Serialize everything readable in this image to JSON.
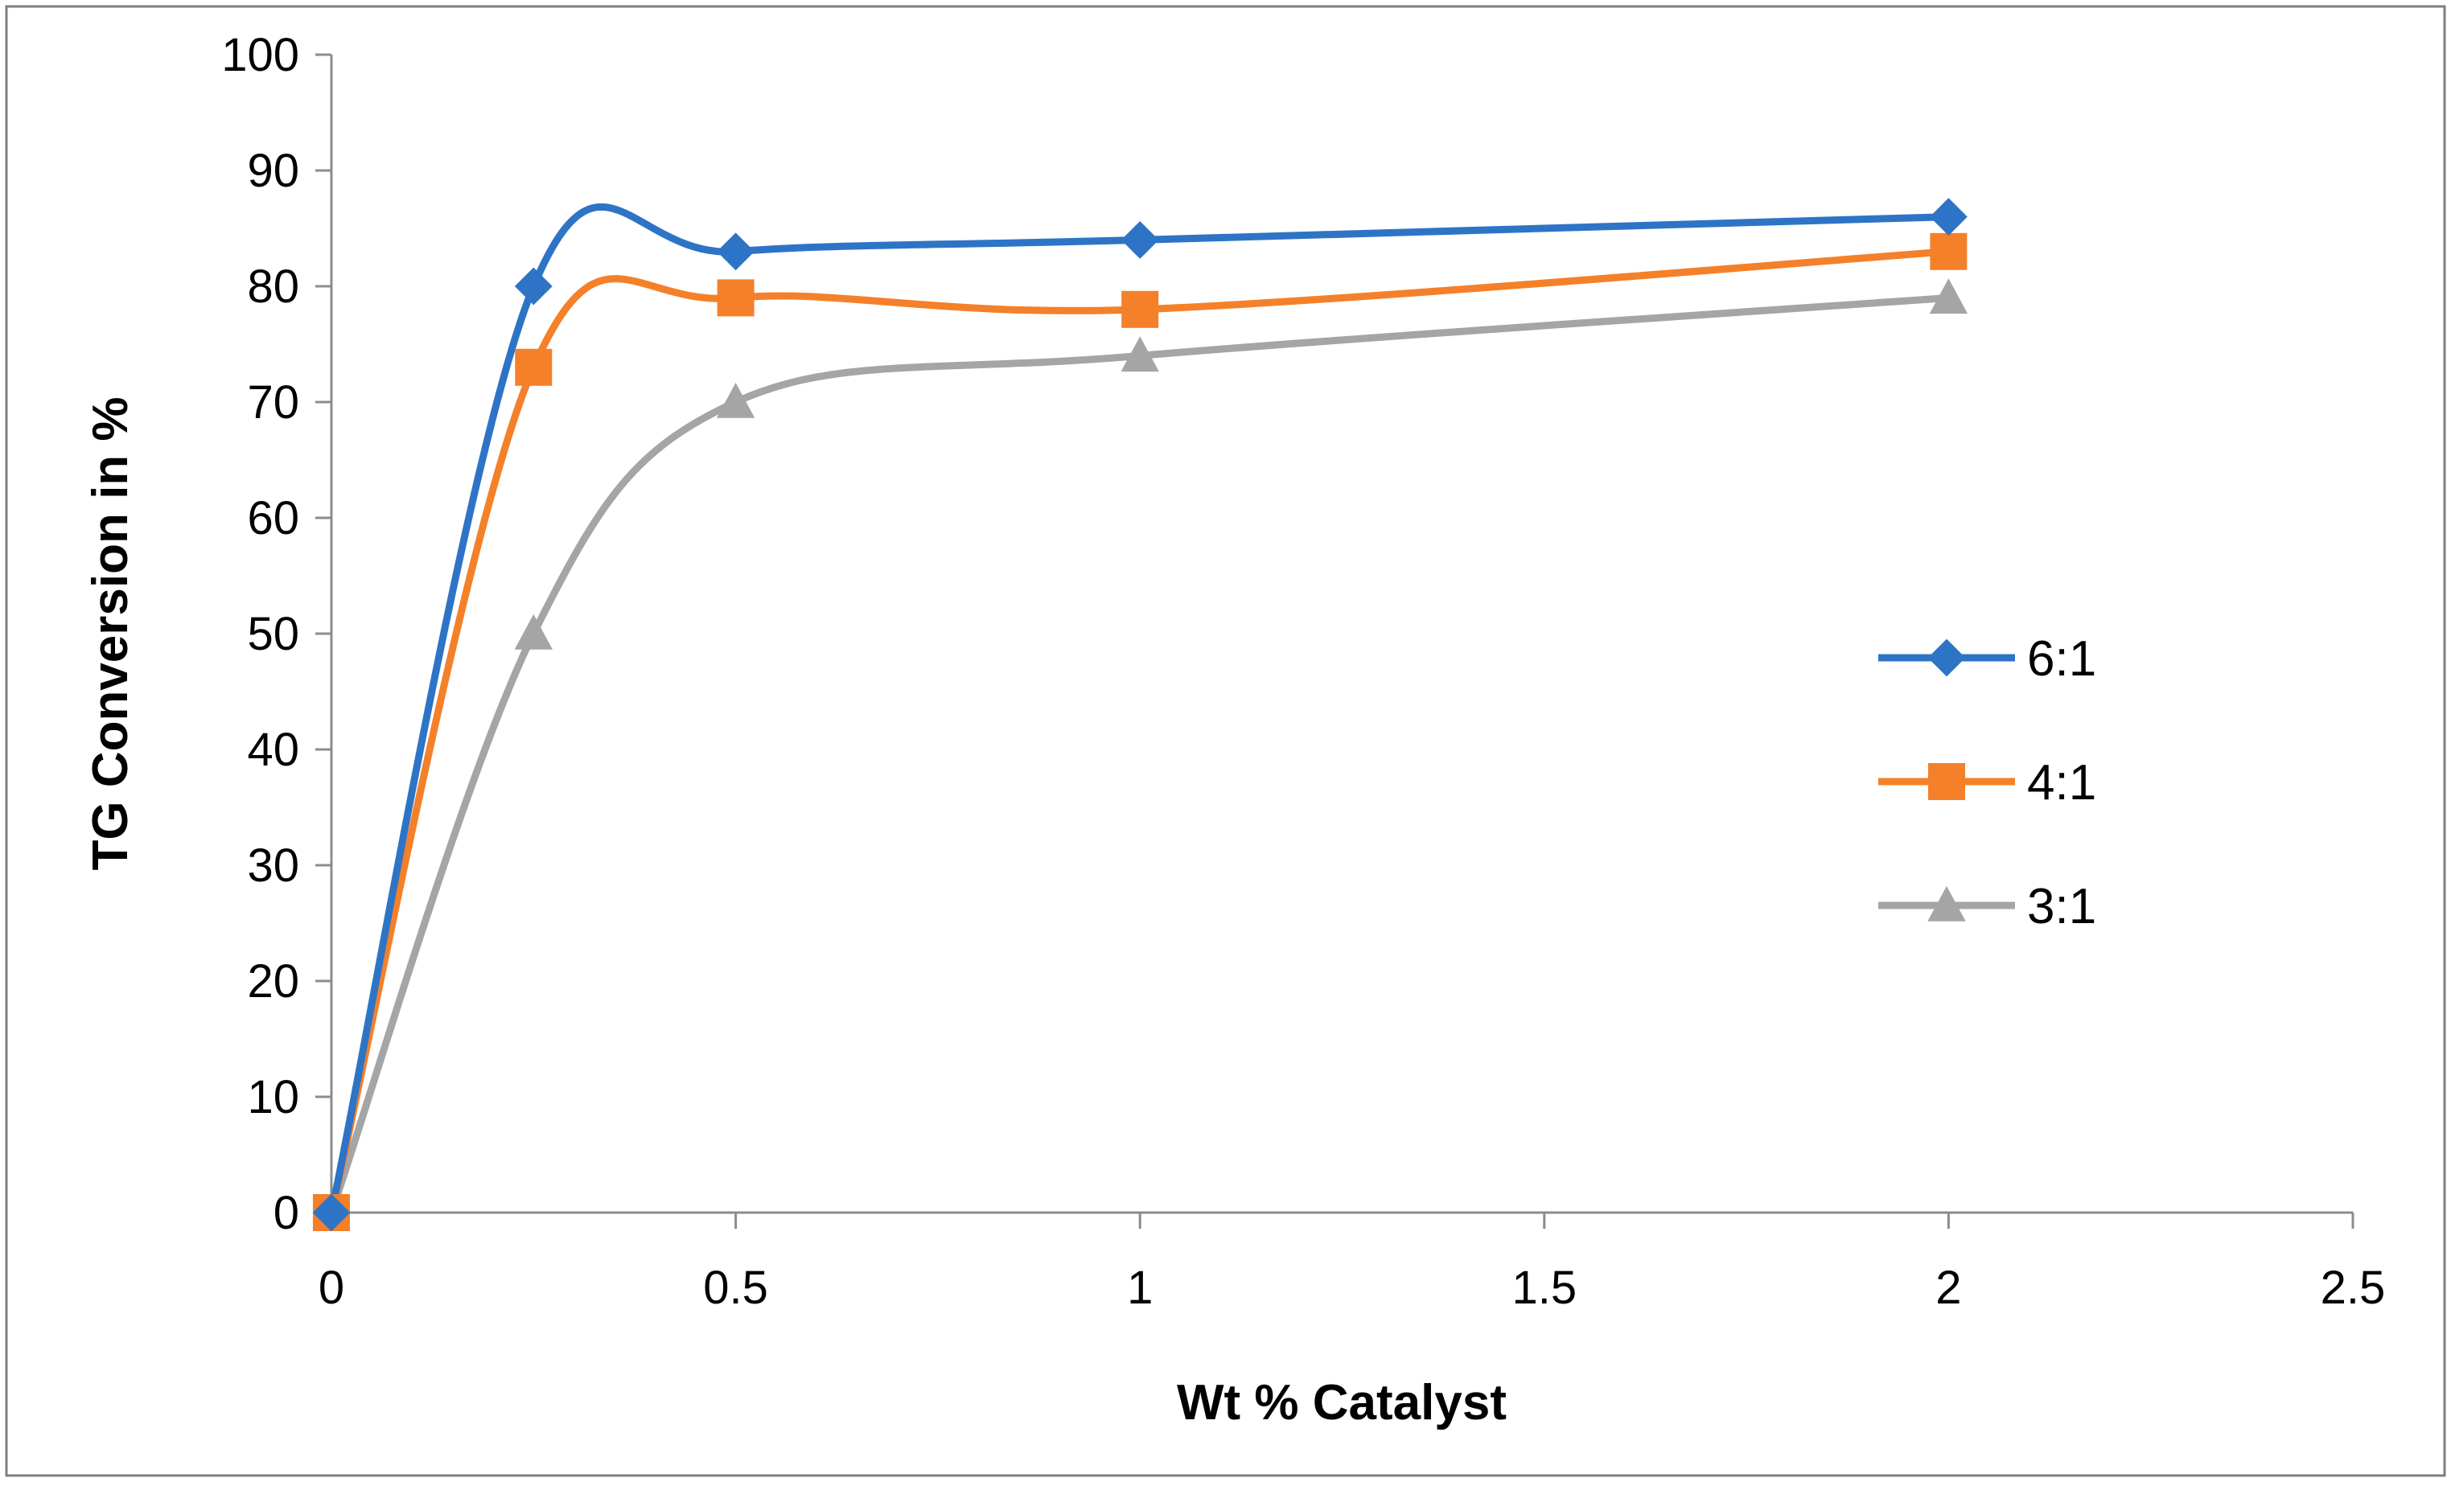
{
  "chart_data": {
    "type": "line",
    "smoothed": true,
    "title": "",
    "xlabel": "Wt % Catalyst",
    "ylabel": "TG Conversion in %",
    "xlim": [
      0,
      2.5
    ],
    "ylim": [
      0,
      100
    ],
    "xticks": [
      0,
      0.5,
      1,
      1.5,
      2,
      2.5
    ],
    "yticks": [
      0,
      10,
      20,
      30,
      40,
      50,
      60,
      70,
      80,
      90,
      100
    ],
    "xtick_labels": [
      "0",
      "0.5",
      "1",
      "1.5",
      "2",
      "2.5"
    ],
    "ytick_labels": [
      "0",
      "10",
      "20",
      "30",
      "40",
      "50",
      "60",
      "70",
      "80",
      "90",
      "100"
    ],
    "grid": false,
    "legend_position": "right",
    "x": [
      0,
      0.25,
      0.5,
      1,
      2
    ],
    "series": [
      {
        "name": "6:1",
        "color": "#2E74C6",
        "marker": "diamond",
        "values": [
          0,
          80,
          83,
          84,
          86
        ]
      },
      {
        "name": "4:1",
        "color": "#F4802A",
        "marker": "square",
        "values": [
          0,
          73,
          79,
          78,
          83
        ]
      },
      {
        "name": "3:1",
        "color": "#A5A5A5",
        "marker": "triangle",
        "values": [
          0,
          50,
          70,
          74,
          79
        ]
      }
    ]
  }
}
